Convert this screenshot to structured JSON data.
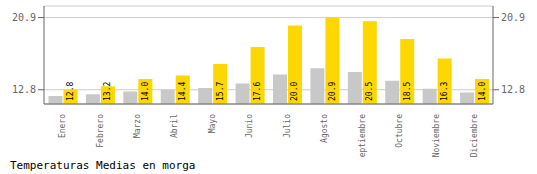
{
  "chart_data": {
    "type": "bar",
    "title": "Temperaturas Medias en morga",
    "categories": [
      "Enero",
      "Febrero",
      "Marzo",
      "Abril",
      "Mayo",
      "Junio",
      "Julio",
      "Agosto",
      "Septiembre",
      "Octubre",
      "Noviembre",
      "Diciembre"
    ],
    "series": [
      {
        "color": "#C8C8C8",
        "values": [
          12.1,
          12.3,
          12.6,
          12.8,
          13.0,
          13.5,
          14.5,
          15.2,
          14.8,
          13.8,
          12.9,
          12.5
        ]
      },
      {
        "color": "#FFD700",
        "values": [
          12.8,
          13.2,
          14.0,
          14.4,
          15.7,
          17.6,
          20.0,
          20.9,
          20.5,
          18.5,
          16.3,
          14.0
        ],
        "value_labels": [
          "12.8",
          "13.2",
          "14.0",
          "14.4",
          "15.7",
          "17.6",
          "20.0",
          "20.9",
          "20.5",
          "18.5",
          "16.3",
          "14.0"
        ],
        "data_labels": true
      }
    ],
    "ylim": [
      11.2,
      22.2
    ],
    "yticks": [
      12.8,
      20.9
    ],
    "y2lim": [
      11.2,
      22.2
    ],
    "y2ticks": [
      12.8,
      20.9
    ],
    "grid": true
  }
}
